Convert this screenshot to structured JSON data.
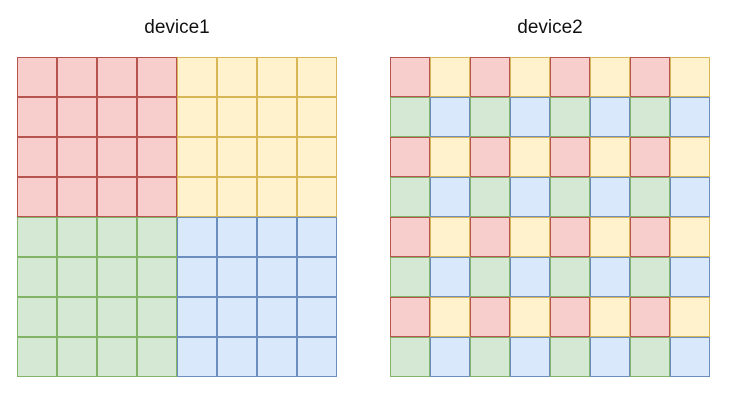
{
  "diagrams": [
    {
      "title": "device1",
      "grid": [
        [
          "red",
          "red",
          "red",
          "red",
          "yellow",
          "yellow",
          "yellow",
          "yellow"
        ],
        [
          "red",
          "red",
          "red",
          "red",
          "yellow",
          "yellow",
          "yellow",
          "yellow"
        ],
        [
          "red",
          "red",
          "red",
          "red",
          "yellow",
          "yellow",
          "yellow",
          "yellow"
        ],
        [
          "red",
          "red",
          "red",
          "red",
          "yellow",
          "yellow",
          "yellow",
          "yellow"
        ],
        [
          "green",
          "green",
          "green",
          "green",
          "blue",
          "blue",
          "blue",
          "blue"
        ],
        [
          "green",
          "green",
          "green",
          "green",
          "blue",
          "blue",
          "blue",
          "blue"
        ],
        [
          "green",
          "green",
          "green",
          "green",
          "blue",
          "blue",
          "blue",
          "blue"
        ],
        [
          "green",
          "green",
          "green",
          "green",
          "blue",
          "blue",
          "blue",
          "blue"
        ]
      ]
    },
    {
      "title": "device2",
      "grid": [
        [
          "red",
          "yellow",
          "red",
          "yellow",
          "red",
          "yellow",
          "red",
          "yellow"
        ],
        [
          "green",
          "blue",
          "green",
          "blue",
          "green",
          "blue",
          "green",
          "blue"
        ],
        [
          "red",
          "yellow",
          "red",
          "yellow",
          "red",
          "yellow",
          "red",
          "yellow"
        ],
        [
          "green",
          "blue",
          "green",
          "blue",
          "green",
          "blue",
          "green",
          "blue"
        ],
        [
          "red",
          "yellow",
          "red",
          "yellow",
          "red",
          "yellow",
          "red",
          "yellow"
        ],
        [
          "green",
          "blue",
          "green",
          "blue",
          "green",
          "blue",
          "green",
          "blue"
        ],
        [
          "red",
          "yellow",
          "red",
          "yellow",
          "red",
          "yellow",
          "red",
          "yellow"
        ],
        [
          "green",
          "blue",
          "green",
          "blue",
          "green",
          "blue",
          "green",
          "blue"
        ]
      ]
    }
  ],
  "colors": {
    "red": {
      "fill": "#f8cecc",
      "stroke": "#b85450"
    },
    "yellow": {
      "fill": "#fff2cc",
      "stroke": "#d6b656"
    },
    "green": {
      "fill": "#d5e8d4",
      "stroke": "#82b366"
    },
    "blue": {
      "fill": "#dae8fc",
      "stroke": "#6c8ebf"
    }
  }
}
